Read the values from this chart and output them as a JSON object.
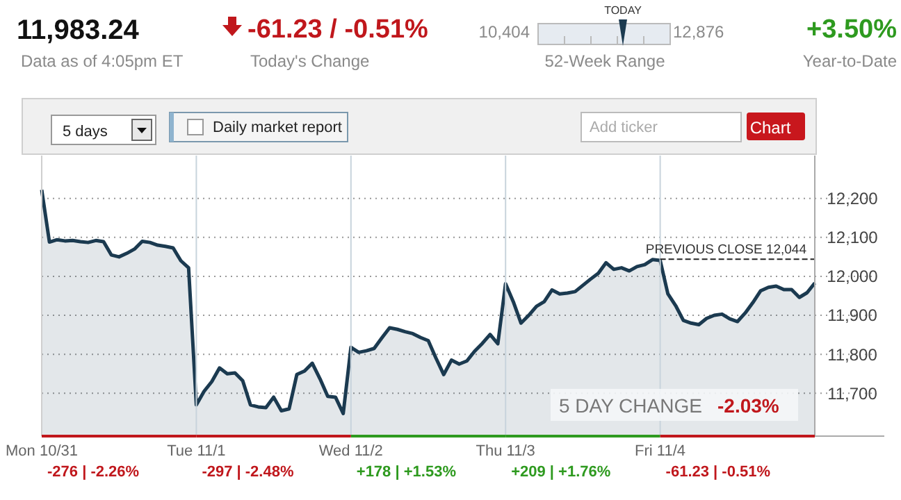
{
  "chart_data": {
    "type": "area",
    "ylim": [
      11590,
      12310
    ],
    "categories": [
      "Mon 10/31",
      null,
      null,
      null,
      null,
      null,
      null,
      null,
      null,
      null,
      null,
      null,
      null,
      null,
      null,
      null,
      null,
      null,
      null,
      null,
      "Tue 11/1",
      null,
      null,
      null,
      null,
      null,
      null,
      null,
      null,
      null,
      null,
      null,
      null,
      null,
      null,
      null,
      null,
      null,
      null,
      null,
      "Wed 11/2",
      null,
      null,
      null,
      null,
      null,
      null,
      null,
      null,
      null,
      null,
      null,
      null,
      null,
      null,
      null,
      null,
      null,
      null,
      null,
      "Thu 11/3",
      null,
      null,
      null,
      null,
      null,
      null,
      null,
      null,
      null,
      null,
      null,
      null,
      null,
      null,
      null,
      null,
      null,
      null,
      null,
      "Fri 11/4",
      null,
      null,
      null,
      null,
      null,
      null,
      null,
      null,
      null,
      null,
      null,
      null,
      null,
      null,
      null,
      null,
      null,
      null,
      null,
      null
    ],
    "yticks": [
      {
        "value": 11700,
        "label": "11,700"
      },
      {
        "value": 11800,
        "label": "11,800"
      },
      {
        "value": 11900,
        "label": "11,900"
      },
      {
        "value": 12000,
        "label": "12,000"
      },
      {
        "value": 12100,
        "label": "12,100"
      },
      {
        "value": 12200,
        "label": "12,200"
      }
    ],
    "grid": "y",
    "series": [
      {
        "color": "#1b3a50",
        "values": [
          12222,
          12088,
          12094,
          12091,
          12092,
          12089,
          12087,
          12092,
          12089,
          12055,
          12050,
          12059,
          12070,
          12090,
          12087,
          12080,
          12077,
          12073,
          12040,
          12022,
          11670,
          11705,
          11730,
          11765,
          11750,
          11752,
          11732,
          11670,
          11665,
          11663,
          11690,
          11655,
          11660,
          11748,
          11757,
          11777,
          11737,
          11692,
          11690,
          11648,
          11818,
          11805,
          11809,
          11815,
          11842,
          11868,
          11864,
          11858,
          11853,
          11843,
          11835,
          11790,
          11748,
          11785,
          11775,
          11783,
          11808,
          11828,
          11851,
          11827,
          11981,
          11935,
          11880,
          11900,
          11923,
          11935,
          11965,
          11955,
          11957,
          11961,
          11977,
          11993,
          12008,
          12035,
          12018,
          12022,
          12014,
          12025,
          12030,
          12043,
          12041,
          11955,
          11925,
          11887,
          11880,
          11876,
          11892,
          11900,
          11903,
          11891,
          11884,
          11906,
          11933,
          11963,
          11972,
          11975,
          11966,
          11966,
          11946,
          11958,
          11983
        ]
      }
    ],
    "ref_lines": [
      {
        "axis": "x",
        "value": "Tue 11/1",
        "color": "#c8d4dc"
      },
      {
        "axis": "x",
        "value": "Wed 11/2",
        "color": "#c8d4dc"
      },
      {
        "axis": "x",
        "value": "Thu 11/3",
        "color": "#c8d4dc"
      },
      {
        "axis": "x",
        "value": "Fri 11/4",
        "color": "#c8d4dc"
      },
      {
        "axis": "y",
        "value": 12044,
        "label": "PREVIOUS CLOSE 12,044",
        "color": "#222222",
        "line_style": "dashed"
      }
    ],
    "annotations": [
      "11,983.24",
      "Data as of 4:05pm ET",
      "-61.23 / -0.51%",
      "Today's Change",
      "10,404",
      "12,876",
      "TODAY",
      "52-Week Range",
      "+3.50%",
      "Year-to-Date",
      "5 days",
      "Daily market report",
      "Add ticker",
      "Chart",
      "5 DAY CHANGE",
      "-2.03%",
      "-276 | -2.26%",
      "-297 | -2.48%",
      "+178 | +1.53%",
      "+209 | +1.76%",
      "-61.23 | -0.51%"
    ]
  }
}
